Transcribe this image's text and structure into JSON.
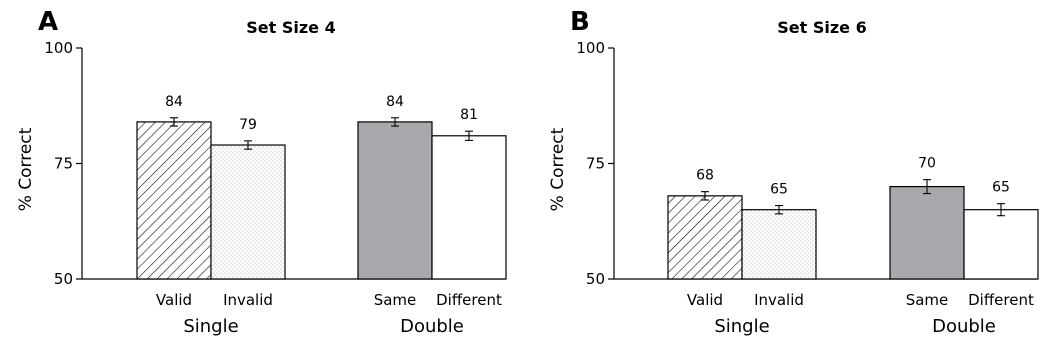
{
  "chart_data": [
    {
      "type": "bar",
      "panel_label": "A",
      "title": "Set Size 4",
      "ylabel": "% Correct",
      "ylim": [
        50,
        100
      ],
      "yticks": [
        50,
        75,
        100
      ],
      "groups": [
        "Single",
        "Double"
      ],
      "categories": [
        "Valid",
        "Invalid",
        "Same",
        "Different"
      ],
      "values": [
        84,
        79,
        84,
        81
      ],
      "value_labels": [
        "84",
        "79",
        "84",
        "81"
      ],
      "errors": [
        0.9,
        0.9,
        0.9,
        1.0
      ],
      "fills": [
        "hatch",
        "dots",
        "#a7a9ac",
        "#ffffff"
      ]
    },
    {
      "type": "bar",
      "panel_label": "B",
      "title": "Set Size 6",
      "ylabel": "% Correct",
      "ylim": [
        50,
        100
      ],
      "yticks": [
        50,
        75,
        100
      ],
      "groups": [
        "Single",
        "Double"
      ],
      "categories": [
        "Valid",
        "Invalid",
        "Same",
        "Different"
      ],
      "values": [
        68,
        65,
        70,
        65
      ],
      "value_labels": [
        "68",
        "65",
        "70",
        "65"
      ],
      "errors": [
        0.9,
        0.9,
        1.5,
        1.3
      ],
      "fills": [
        "hatch",
        "dots",
        "#a7a9ac",
        "#ffffff"
      ]
    }
  ]
}
